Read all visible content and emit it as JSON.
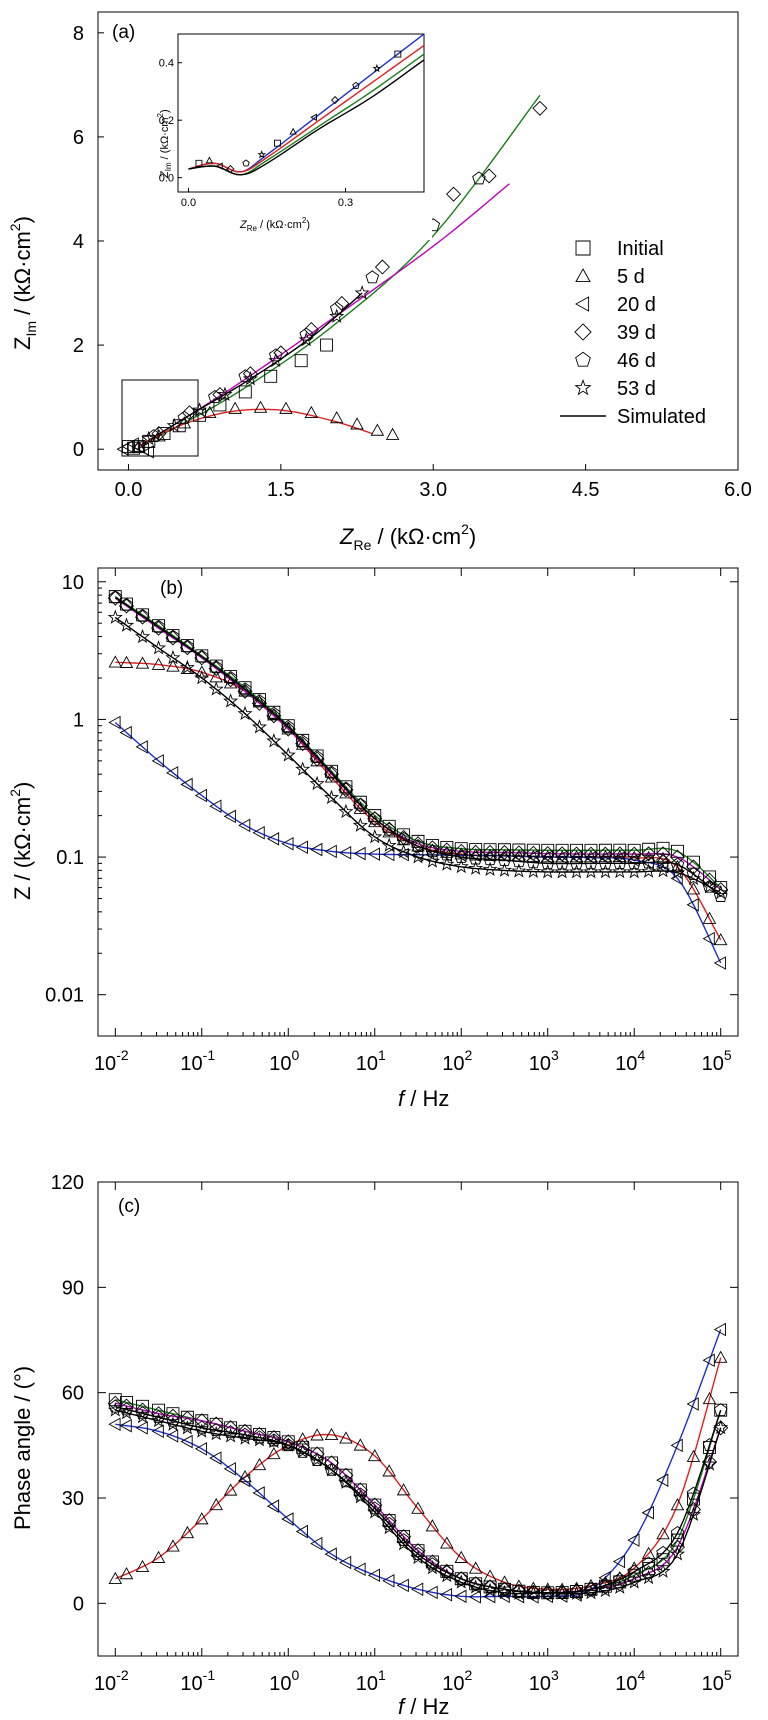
{
  "figure": {
    "colors": {
      "green": "#1a7f1a",
      "magenta": "#c000c0",
      "red": "#e02020",
      "blue": "#1c2fd0",
      "black": "#000000",
      "pink": "#e0307a"
    }
  },
  "chart_data": [
    {
      "type": "scatter",
      "panel": "(a)",
      "title": "",
      "xlabel": "Z",
      "xlabel_sub": "Re",
      "xlabel_unit": " / (kΩ·cm",
      "xlabel_sup": "2",
      "xlabel_end": ")",
      "ylabel": "Z",
      "ylabel_sub": "Im",
      "ylabel_unit": " / (kΩ·cm",
      "ylabel_sup": "2",
      "ylabel_end": ")",
      "xlim": [
        -0.3,
        6.0
      ],
      "ylim": [
        -0.4,
        8.4
      ],
      "xticks": [
        0.0,
        1.5,
        3.0,
        4.5,
        6.0
      ],
      "xtick_labels": [
        "0.0",
        "1.5",
        "3.0",
        "4.5",
        "6.0"
      ],
      "yticks": [
        0,
        2,
        4,
        6,
        8
      ],
      "ytick_labels": [
        "0",
        "2",
        "4",
        "6",
        "8"
      ],
      "legend_position": "right",
      "legend": [
        {
          "marker": "square",
          "label": "Initial"
        },
        {
          "marker": "triangle-up",
          "label": "5 d"
        },
        {
          "marker": "triangle-left",
          "label": "20 d"
        },
        {
          "marker": "diamond",
          "label": "39 d"
        },
        {
          "marker": "pentagon",
          "label": "46 d"
        },
        {
          "marker": "star",
          "label": "53 d"
        },
        {
          "marker": "line",
          "label": "Simulated"
        }
      ],
      "series": [
        {
          "marker": "square",
          "x": [
            0.0,
            0.05,
            0.1,
            0.2,
            0.35,
            0.5,
            0.7,
            0.9,
            1.15,
            1.4,
            1.7,
            1.95
          ],
          "y": [
            0.05,
            0.02,
            0.05,
            0.15,
            0.3,
            0.45,
            0.65,
            0.85,
            1.1,
            1.4,
            1.7,
            2.0
          ]
        },
        {
          "marker": "triangle-up",
          "x": [
            0.1,
            0.3,
            0.55,
            0.8,
            1.05,
            1.3,
            1.55,
            1.8,
            2.05,
            2.25,
            2.45,
            2.6
          ],
          "y": [
            0.05,
            0.25,
            0.5,
            0.7,
            0.78,
            0.8,
            0.78,
            0.7,
            0.6,
            0.48,
            0.36,
            0.28
          ]
        },
        {
          "marker": "triangle-left",
          "x": [
            -0.05,
            0.0,
            0.05,
            0.1,
            0.15,
            0.2
          ],
          "y": [
            0.0,
            0.05,
            0.1,
            0.05,
            0.0,
            -0.05
          ]
        },
        {
          "marker": "diamond",
          "x": [
            0.3,
            0.6,
            0.9,
            1.2,
            1.5,
            1.8,
            2.1,
            2.5,
            2.85,
            3.2,
            3.55,
            4.05
          ],
          "y": [
            0.3,
            0.7,
            1.05,
            1.45,
            1.85,
            2.3,
            2.8,
            3.5,
            4.3,
            4.9,
            5.25,
            6.55
          ]
        },
        {
          "marker": "pentagon",
          "x": [
            0.25,
            0.55,
            0.85,
            1.15,
            1.45,
            1.75,
            2.05,
            2.4,
            3.0,
            3.45
          ],
          "y": [
            0.25,
            0.6,
            1.0,
            1.4,
            1.8,
            2.2,
            2.7,
            3.3,
            4.3,
            5.2
          ]
        },
        {
          "marker": "star",
          "x": [
            0.2,
            0.45,
            0.7,
            0.95,
            1.2,
            1.45,
            1.75,
            2.05,
            2.3
          ],
          "y": [
            0.2,
            0.45,
            0.75,
            1.05,
            1.35,
            1.7,
            2.1,
            2.55,
            3.0
          ]
        }
      ],
      "fits": [
        {
          "color": "green",
          "x": [
            0.1,
            1.0,
            2.0,
            3.0,
            4.05
          ],
          "y": [
            0.05,
            1.0,
            2.35,
            4.1,
            6.8
          ]
        },
        {
          "color": "magenta",
          "x": [
            0.1,
            1.0,
            2.0,
            3.0,
            3.75
          ],
          "y": [
            0.05,
            1.15,
            2.5,
            3.9,
            5.1
          ]
        },
        {
          "color": "black",
          "x": [
            0.1,
            0.6,
            1.2,
            1.8,
            2.3
          ],
          "y": [
            0.05,
            0.65,
            1.35,
            2.15,
            3.0
          ]
        },
        {
          "color": "red",
          "x": [
            0.1,
            0.5,
            1.0,
            1.5,
            2.0,
            2.4
          ],
          "y": [
            0.05,
            0.45,
            0.72,
            0.75,
            0.55,
            0.3
          ]
        }
      ],
      "inset": {
        "xlabel": "Z",
        "xlabel_sub": "Re",
        "xlabel_unit": " / (kΩ·cm",
        "xlabel_sup": "2",
        "xlabel_end": ")",
        "ylabel": "Z",
        "ylabel_sub": "Im",
        "ylabel_unit": " / (kΩ·cm",
        "ylabel_sup": "2",
        "ylabel_end": ")",
        "xlim": [
          -0.02,
          0.45
        ],
        "ylim": [
          -0.05,
          0.5
        ],
        "xticks": [
          0.0,
          0.3
        ],
        "xtick_labels": [
          "0.0",
          "0.3"
        ],
        "yticks": [
          0.0,
          0.2,
          0.4
        ],
        "ytick_labels": [
          "0.0",
          "0.2",
          "0.4"
        ],
        "fits": [
          {
            "color": "blue",
            "x": [
              0.0,
              0.05,
              0.1,
              0.15,
              0.25,
              0.35,
              0.45
            ],
            "y": [
              0.03,
              0.05,
              0.02,
              0.08,
              0.22,
              0.36,
              0.5
            ]
          },
          {
            "color": "red",
            "x": [
              0.0,
              0.05,
              0.1,
              0.15,
              0.25,
              0.35,
              0.45
            ],
            "y": [
              0.03,
              0.05,
              0.02,
              0.07,
              0.2,
              0.33,
              0.46
            ]
          },
          {
            "color": "green",
            "x": [
              0.0,
              0.05,
              0.1,
              0.15,
              0.25,
              0.35,
              0.45
            ],
            "y": [
              0.03,
              0.04,
              0.01,
              0.06,
              0.18,
              0.3,
              0.43
            ]
          },
          {
            "color": "black",
            "x": [
              0.0,
              0.05,
              0.1,
              0.15,
              0.25,
              0.35,
              0.45
            ],
            "y": [
              0.03,
              0.04,
              0.01,
              0.05,
              0.17,
              0.28,
              0.41
            ]
          }
        ],
        "points": {
          "x": [
            0.02,
            0.04,
            0.06,
            0.08,
            0.11,
            0.14,
            0.17,
            0.2,
            0.24,
            0.28,
            0.32,
            0.36,
            0.4
          ],
          "y": [
            0.05,
            0.06,
            0.04,
            0.03,
            0.05,
            0.08,
            0.12,
            0.16,
            0.21,
            0.27,
            0.32,
            0.38,
            0.43
          ]
        }
      }
    },
    {
      "type": "line",
      "panel": "(b)",
      "title": "",
      "xlabel": "f",
      "xlabel_unit": " / Hz",
      "ylabel": "Z / (kΩ·cm",
      "ylabel_sup": "2",
      "ylabel_end": ")",
      "xscale": "log",
      "yscale": "log",
      "xlim_exp": [
        -2.2,
        5.2
      ],
      "ylim_exp": [
        -2.3,
        1.1
      ],
      "xticks_exp": [
        -2,
        -1,
        0,
        1,
        2,
        3,
        4,
        5
      ],
      "xtick_base": "10",
      "yticks_exp": [
        -2,
        -1,
        0,
        1
      ],
      "ytick_labels": [
        "0.01",
        "0.1",
        "1",
        "10"
      ],
      "series": [
        {
          "marker": "square",
          "color": "green",
          "x_exp": [
            -2,
            -1.5,
            -1,
            -0.5,
            0,
            0.5,
            1,
            1.5,
            2,
            2.5,
            3,
            3.5,
            4,
            4.5,
            5
          ],
          "y": [
            7.8,
            4.8,
            2.9,
            1.7,
            0.9,
            0.42,
            0.2,
            0.13,
            0.115,
            0.113,
            0.112,
            0.112,
            0.112,
            0.11,
            0.06
          ]
        },
        {
          "marker": "triangle-up",
          "color": "red",
          "x_exp": [
            -2,
            -1.5,
            -1,
            -0.5,
            0,
            0.5,
            1,
            1.5,
            2,
            2.5,
            3,
            3.5,
            4,
            4.5,
            5
          ],
          "y": [
            2.6,
            2.5,
            2.2,
            1.6,
            0.85,
            0.38,
            0.18,
            0.12,
            0.105,
            0.102,
            0.1,
            0.1,
            0.099,
            0.085,
            0.025
          ]
        },
        {
          "marker": "triangle-left",
          "color": "blue",
          "x_exp": [
            -2,
            -1.5,
            -1,
            -0.5,
            0,
            0.5,
            1,
            1.5,
            2,
            2.5,
            3,
            3.5,
            4,
            4.5,
            5
          ],
          "y": [
            0.95,
            0.5,
            0.28,
            0.17,
            0.125,
            0.11,
            0.105,
            0.104,
            0.103,
            0.102,
            0.1,
            0.099,
            0.095,
            0.07,
            0.017
          ]
        },
        {
          "marker": "diamond",
          "color": "magenta",
          "x_exp": [
            -2,
            -1.5,
            -1,
            -0.5,
            0,
            0.5,
            1,
            1.5,
            2,
            2.5,
            3,
            3.5,
            4,
            4.5,
            5
          ],
          "y": [
            7.6,
            4.6,
            2.8,
            1.6,
            0.85,
            0.4,
            0.19,
            0.125,
            0.11,
            0.108,
            0.106,
            0.105,
            0.105,
            0.1,
            0.058
          ]
        },
        {
          "marker": "pentagon",
          "color": "black",
          "x_exp": [
            -2,
            -1.5,
            -1,
            -0.5,
            0,
            0.5,
            1,
            1.5,
            2,
            2.5,
            3,
            3.5,
            4,
            4.5,
            5
          ],
          "y": [
            7.7,
            4.7,
            2.85,
            1.65,
            0.88,
            0.41,
            0.19,
            0.12,
            0.1,
            0.095,
            0.09,
            0.09,
            0.09,
            0.088,
            0.052
          ]
        },
        {
          "marker": "star",
          "color": "black",
          "x_exp": [
            -2,
            -1.5,
            -1,
            -0.5,
            0,
            0.5,
            1,
            1.5,
            2,
            2.5,
            3,
            3.5,
            4,
            4.5,
            5
          ],
          "y": [
            5.5,
            3.3,
            2.0,
            1.1,
            0.55,
            0.27,
            0.14,
            0.1,
            0.085,
            0.08,
            0.078,
            0.078,
            0.078,
            0.077,
            0.055
          ]
        }
      ]
    },
    {
      "type": "line",
      "panel": "(c)",
      "title": "",
      "xlabel": "f",
      "xlabel_unit": " / Hz",
      "ylabel": "Phase angle / (°)",
      "xscale": "log",
      "xlim_exp": [
        -2.2,
        5.2
      ],
      "ylim": [
        -15,
        120
      ],
      "xticks_exp": [
        -2,
        -1,
        0,
        1,
        2,
        3,
        4,
        5
      ],
      "xtick_base": "10",
      "yticks": [
        0,
        30,
        60,
        90,
        120
      ],
      "ytick_labels": [
        "0",
        "30",
        "60",
        "90",
        "120"
      ],
      "series": [
        {
          "marker": "square",
          "color": "green",
          "x_exp": [
            -2,
            -1.5,
            -1,
            -0.5,
            0,
            0.5,
            1,
            1.5,
            2,
            2.5,
            3,
            3.5,
            4,
            4.5,
            5
          ],
          "y": [
            58,
            55,
            52,
            49,
            46,
            40,
            28,
            15,
            7,
            4,
            3,
            4,
            8,
            18,
            55
          ]
        },
        {
          "marker": "triangle-up",
          "color": "red",
          "x_exp": [
            -2,
            -1.5,
            -1,
            -0.5,
            0,
            0.5,
            1,
            1.5,
            2,
            2.5,
            3,
            3.5,
            4,
            4.5,
            5
          ],
          "y": [
            7,
            13,
            24,
            36,
            45,
            48,
            42,
            27,
            13,
            6,
            4,
            5,
            10,
            28,
            70
          ]
        },
        {
          "marker": "triangle-left",
          "color": "blue",
          "x_exp": [
            -2,
            -1.5,
            -1,
            -0.5,
            0,
            0.5,
            1,
            1.5,
            2,
            2.5,
            3,
            3.5,
            4,
            4.5,
            5
          ],
          "y": [
            51,
            49,
            44,
            35,
            24,
            14,
            8,
            4,
            2,
            2,
            2,
            4,
            18,
            45,
            78
          ]
        },
        {
          "marker": "diamond",
          "color": "magenta",
          "x_exp": [
            -2,
            -1.5,
            -1,
            -0.5,
            0,
            0.5,
            1,
            1.5,
            2,
            2.5,
            3,
            3.5,
            4,
            4.5,
            5
          ],
          "y": [
            57,
            54,
            52,
            49,
            46,
            40,
            28,
            15,
            7,
            4,
            3,
            4,
            7,
            16,
            50
          ]
        },
        {
          "marker": "pentagon",
          "color": "black",
          "x_exp": [
            -2,
            -1.5,
            -1,
            -0.5,
            0,
            0.5,
            1,
            1.5,
            2,
            2.5,
            3,
            3.5,
            4,
            4.5,
            5
          ],
          "y": [
            56,
            53,
            50,
            48,
            45,
            38,
            27,
            14,
            7,
            4,
            3,
            4,
            9,
            20,
            55
          ]
        },
        {
          "marker": "star",
          "color": "black",
          "x_exp": [
            -2,
            -1.5,
            -1,
            -0.5,
            0,
            0.5,
            1,
            1.5,
            2,
            2.5,
            3,
            3.5,
            4,
            4.5,
            5
          ],
          "y": [
            55,
            52,
            49,
            47,
            45,
            38,
            26,
            13,
            6,
            3,
            3,
            3,
            6,
            14,
            50
          ]
        }
      ]
    }
  ]
}
